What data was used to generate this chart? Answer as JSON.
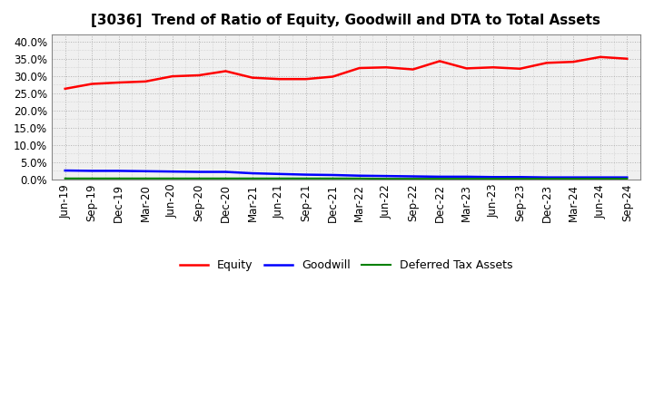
{
  "title": "[3036]  Trend of Ratio of Equity, Goodwill and DTA to Total Assets",
  "labels": [
    "Jun-19",
    "Sep-19",
    "Dec-19",
    "Mar-20",
    "Jun-20",
    "Sep-20",
    "Dec-20",
    "Mar-21",
    "Jun-21",
    "Sep-21",
    "Dec-21",
    "Mar-22",
    "Jun-22",
    "Sep-22",
    "Dec-22",
    "Mar-23",
    "Jun-23",
    "Sep-23",
    "Dec-23",
    "Mar-24",
    "Jun-24",
    "Sep-24"
  ],
  "equity": [
    26.3,
    27.7,
    28.1,
    28.4,
    29.9,
    30.2,
    31.4,
    29.5,
    29.1,
    29.1,
    29.8,
    32.3,
    32.5,
    31.9,
    34.3,
    32.2,
    32.5,
    32.1,
    33.8,
    34.1,
    35.5,
    35.0
  ],
  "goodwill": [
    2.6,
    2.5,
    2.5,
    2.4,
    2.3,
    2.2,
    2.2,
    1.8,
    1.6,
    1.4,
    1.3,
    1.1,
    1.0,
    0.9,
    0.8,
    0.8,
    0.7,
    0.7,
    0.6,
    0.6,
    0.6,
    0.6
  ],
  "dta": [
    0.3,
    0.3,
    0.3,
    0.3,
    0.3,
    0.3,
    0.3,
    0.3,
    0.3,
    0.3,
    0.3,
    0.3,
    0.2,
    0.2,
    0.2,
    0.2,
    0.2,
    0.2,
    0.2,
    0.2,
    0.2,
    0.2
  ],
  "equity_color": "#ff0000",
  "goodwill_color": "#0000ff",
  "dta_color": "#008000",
  "bg_color": "#ffffff",
  "plot_bg_color": "#f0f0f0",
  "grid_color": "#aaaaaa",
  "ylim": [
    0,
    42
  ],
  "yticks": [
    0.0,
    5.0,
    10.0,
    15.0,
    20.0,
    25.0,
    30.0,
    35.0,
    40.0
  ],
  "ytick_labels": [
    "0.0%",
    "5.0%",
    "10.0%",
    "15.0%",
    "20.0%",
    "25.0%",
    "30.0%",
    "35.0%",
    "40.0%"
  ],
  "legend_labels": [
    "Equity",
    "Goodwill",
    "Deferred Tax Assets"
  ],
  "title_fontsize": 11,
  "tick_fontsize": 8.5,
  "legend_fontsize": 9
}
